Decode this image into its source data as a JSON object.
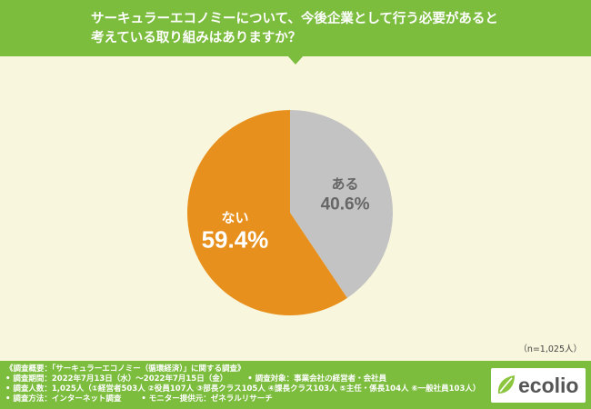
{
  "header": {
    "title_line1": "サーキュラーエコノミーについて、今後企業として行う必要があると",
    "title_line2": "考えている取り組みはありますか？"
  },
  "chart_data": {
    "type": "pie",
    "categories": [
      "ある",
      "ない"
    ],
    "values": [
      40.6,
      59.4
    ],
    "value_labels": [
      "40.6%",
      "59.4%"
    ],
    "colors": [
      "#c3c3c3",
      "#e8901d"
    ],
    "label_colors": [
      "#666666",
      "#ffffff"
    ],
    "start_angle_deg": 0,
    "direction": "clockwise"
  },
  "sample_size": "（n=1,025人）",
  "footer": {
    "line1": "《調査概要：「サーキュラーエコノミー（循環経済）」に関する調査》",
    "period": "• 調査期間：2022年7月13日（水）～2022年7月15日（金）",
    "target": "• 調査対象：事業会社の経営者・会社員",
    "people": "• 調査人数：1,025人（①経営者503人 ②役員107人 ③部長クラス105人 ④課長クラス103人 ⑤主任・係長104人 ⑥一般社員103人）",
    "method": "• 調査方法：インターネット調査",
    "provider": "• モニター提供元：ゼネラルリサーチ"
  },
  "logo": {
    "text": "ecolio",
    "mark_color": "#8cc63f",
    "text_color": "#555555"
  }
}
